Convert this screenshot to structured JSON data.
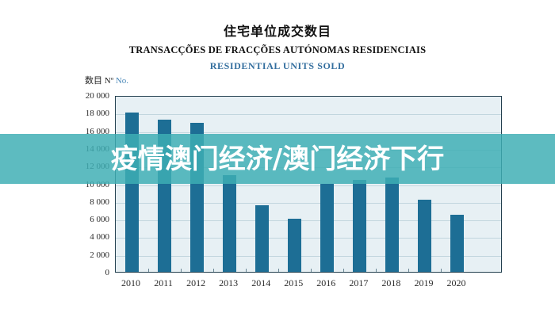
{
  "titles": {
    "zh": "住宅单位成交数目",
    "pt": "TRANSACÇÕES DE FRACÇÕES AUTÓNOMAS RESIDENCIAIS",
    "en": "RESIDENTIAL UNITS SOLD"
  },
  "axis_unit": {
    "zh": "数目",
    "pt": "Nº",
    "en": "No."
  },
  "watermark": {
    "text": "疫情澳门经济/澳门经济下行",
    "band_color": "#3eaeb4",
    "text_color": "#ffffff"
  },
  "colors": {
    "bar": "#1d6e95",
    "plot_background": "#e7f0f4",
    "gridline": "#c2d6de",
    "plot_border": "#23404f",
    "title_en_blue": "#336e9e",
    "unit_no_blue": "#4a88b8"
  },
  "chart_data": {
    "type": "bar",
    "title": "住宅单位成交数目 / TRANSACÇÕES DE FRACÇÕES AUTÓNOMAS RESIDENCIAIS / RESIDENTIAL UNITS SOLD",
    "xlabel": "",
    "ylabel": "数目 Nº No.",
    "categories": [
      "2010",
      "2011",
      "2012",
      "2013",
      "2014",
      "2015",
      "2016",
      "2017",
      "2018",
      "2019",
      "2020"
    ],
    "values": [
      18000,
      17200,
      16900,
      10900,
      7500,
      6000,
      10000,
      10400,
      10700,
      8200,
      6500
    ],
    "ylim": [
      0,
      20000
    ],
    "ytick_interval": 2000,
    "ytick_labels_top_to_bottom": [
      "20 000",
      "18 000",
      "16 000",
      "14 000",
      "12 000",
      "10 000",
      "8 000",
      "6 000",
      "4 000",
      "2 000",
      "0"
    ],
    "grid": true,
    "legend": "none"
  }
}
